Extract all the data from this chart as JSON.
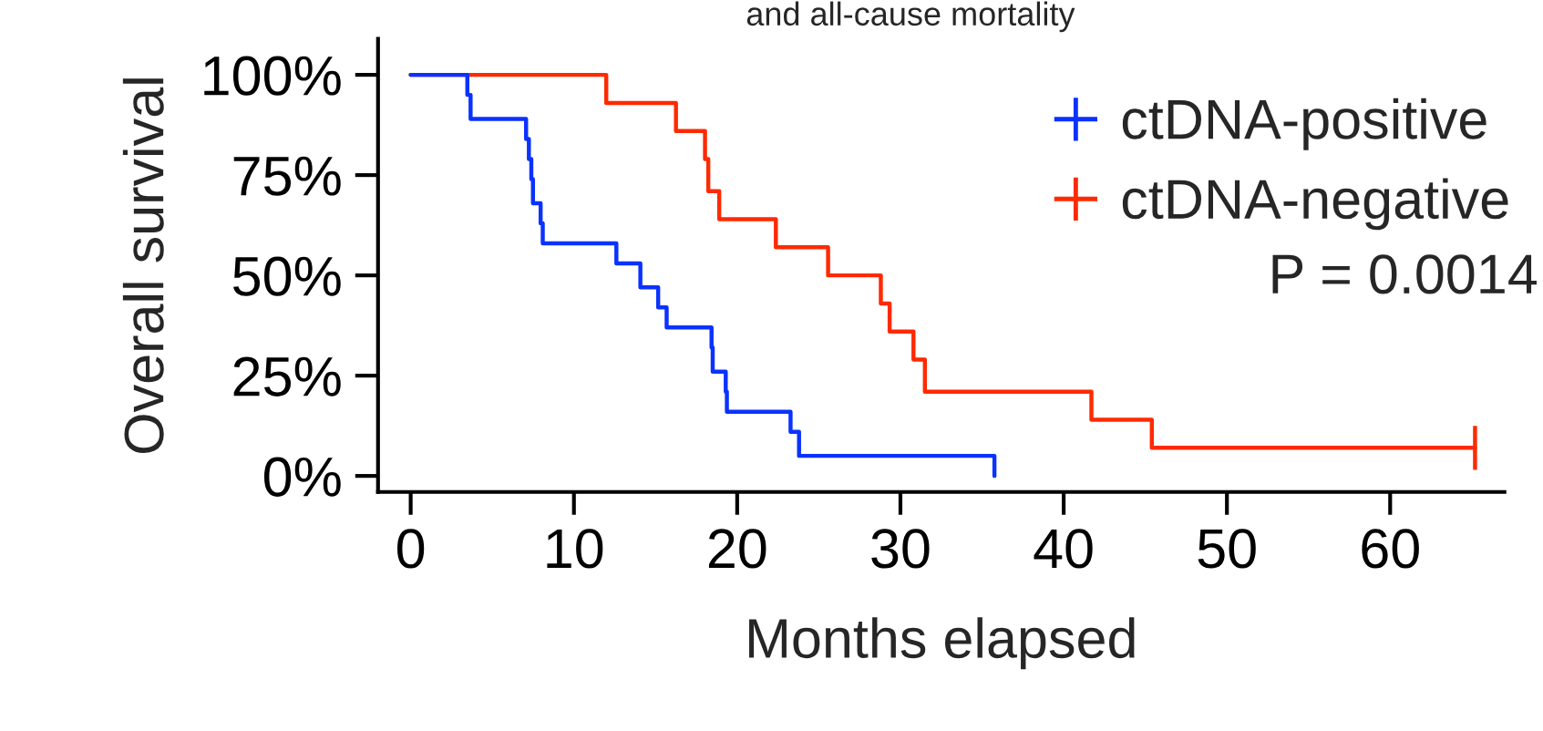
{
  "chart_data": {
    "type": "step",
    "title": "and all-cause mortality",
    "xlabel": "Months elapsed",
    "ylabel": "Overall survival",
    "series": [
      {
        "name": "ctDNA-positive",
        "color": "#0a32ff",
        "x": [
          0,
          3.47,
          3.67,
          7.07,
          7.24,
          7.39,
          7.49,
          7.96,
          8.09,
          12.6,
          14.07,
          15.16,
          15.68,
          18.43,
          18.5,
          19.3,
          19.37,
          23.27,
          23.79,
          35.76
        ],
        "values": [
          100,
          95,
          89,
          84,
          79,
          74,
          68,
          63,
          58,
          53,
          47,
          42,
          37,
          32,
          26,
          21,
          16,
          11,
          5,
          0
        ]
      },
      {
        "name": "ctDNA-negative",
        "color": "#ff2a00",
        "x": [
          0,
          11.98,
          16.25,
          18.03,
          18.23,
          18.9,
          22.37,
          25.57,
          28.8,
          29.34,
          30.8,
          31.5,
          41.7,
          45.4,
          65.2
        ],
        "values": [
          100,
          93,
          86,
          79,
          71,
          64,
          57,
          50,
          43,
          36,
          29,
          21,
          14,
          7,
          7
        ],
        "errors": [
          null,
          null,
          null,
          null,
          null,
          null,
          null,
          null,
          null,
          null,
          null,
          null,
          null,
          null,
          5.5
        ]
      }
    ],
    "annotations": [
      "P = 0.0014"
    ],
    "xlim": [
      -2,
      67
    ],
    "xticks": [
      0,
      10,
      20,
      30,
      40,
      50,
      60
    ],
    "ylim": [
      -4,
      109
    ],
    "yticks": [
      {
        "value": 0,
        "label": "0%"
      },
      {
        "value": 25,
        "label": "25%"
      },
      {
        "value": 50,
        "label": "50%"
      },
      {
        "value": 75,
        "label": "75%"
      },
      {
        "value": 100,
        "label": "100%"
      }
    ],
    "grid": false,
    "legend": "top right"
  }
}
